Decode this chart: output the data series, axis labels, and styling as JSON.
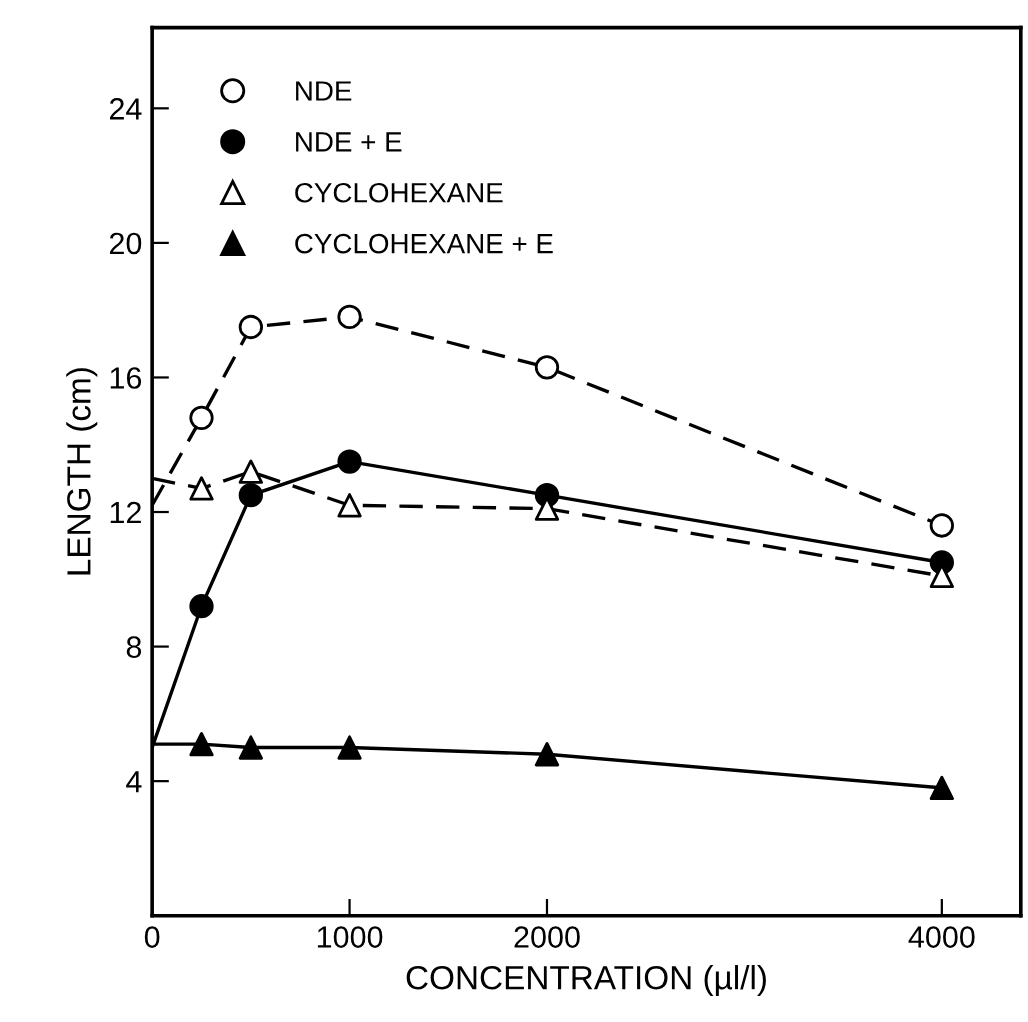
{
  "chart_data": {
    "type": "scatter",
    "xlabel": "CONCENTRATION (µl/l)",
    "ylabel": "LENGTH (cm)",
    "xlim": [
      0,
      4400
    ],
    "ylim": [
      0,
      26.4
    ],
    "xticks": [
      0,
      1000,
      2000,
      4000
    ],
    "yticks": [
      4,
      8,
      12,
      16,
      20,
      24
    ],
    "grid": false,
    "legend": "top left",
    "series": [
      {
        "type": "line",
        "x": [
          0,
          250,
          500,
          1000,
          2000,
          4000
        ],
        "values": [
          12.2,
          14.8,
          17.5,
          17.8,
          16.3,
          11.6
        ],
        "color": "#000000",
        "line_style": "dashed",
        "marker": "none"
      },
      {
        "type": "line",
        "x": [
          0,
          250,
          500,
          1000,
          2000,
          4000
        ],
        "values": [
          5.0,
          9.2,
          12.5,
          13.5,
          12.5,
          10.5
        ],
        "color": "#000000",
        "line_style": "solid",
        "marker": "none"
      },
      {
        "type": "line",
        "x": [
          0,
          250,
          500,
          1000,
          2000,
          4000
        ],
        "values": [
          13.0,
          12.7,
          13.2,
          12.2,
          12.1,
          10.1
        ],
        "color": "#000000",
        "line_style": "dashed",
        "marker": "none"
      },
      {
        "type": "line",
        "x": [
          0,
          250,
          500,
          1000,
          2000,
          4000
        ],
        "values": [
          5.1,
          5.1,
          5.0,
          5.0,
          4.8,
          3.8
        ],
        "color": "#000000",
        "line_style": "solid",
        "marker": "none"
      },
      {
        "name": "NDE",
        "x": [
          250,
          500,
          1000,
          2000,
          4000
        ],
        "values": [
          14.8,
          17.5,
          17.8,
          16.3,
          11.6
        ],
        "color": "#ffffff",
        "marker": "circle"
      },
      {
        "name": "NDE + E",
        "x": [
          250,
          500,
          1000,
          2000,
          4000
        ],
        "values": [
          9.2,
          12.5,
          13.5,
          12.5,
          10.5
        ],
        "color": "#000000",
        "marker": "circle"
      },
      {
        "name": "CYCLOHEXANE",
        "x": [
          250,
          500,
          1000,
          2000,
          4000
        ],
        "values": [
          12.7,
          13.2,
          12.2,
          12.1,
          10.1
        ],
        "color": "#ffffff",
        "marker": "triangle"
      },
      {
        "name": "CYCLOHEXANE + E",
        "x": [
          250,
          500,
          1000,
          2000,
          4000
        ],
        "values": [
          5.1,
          5.0,
          5.0,
          4.8,
          3.8
        ],
        "color": "#000000",
        "marker": "triangle"
      }
    ]
  }
}
